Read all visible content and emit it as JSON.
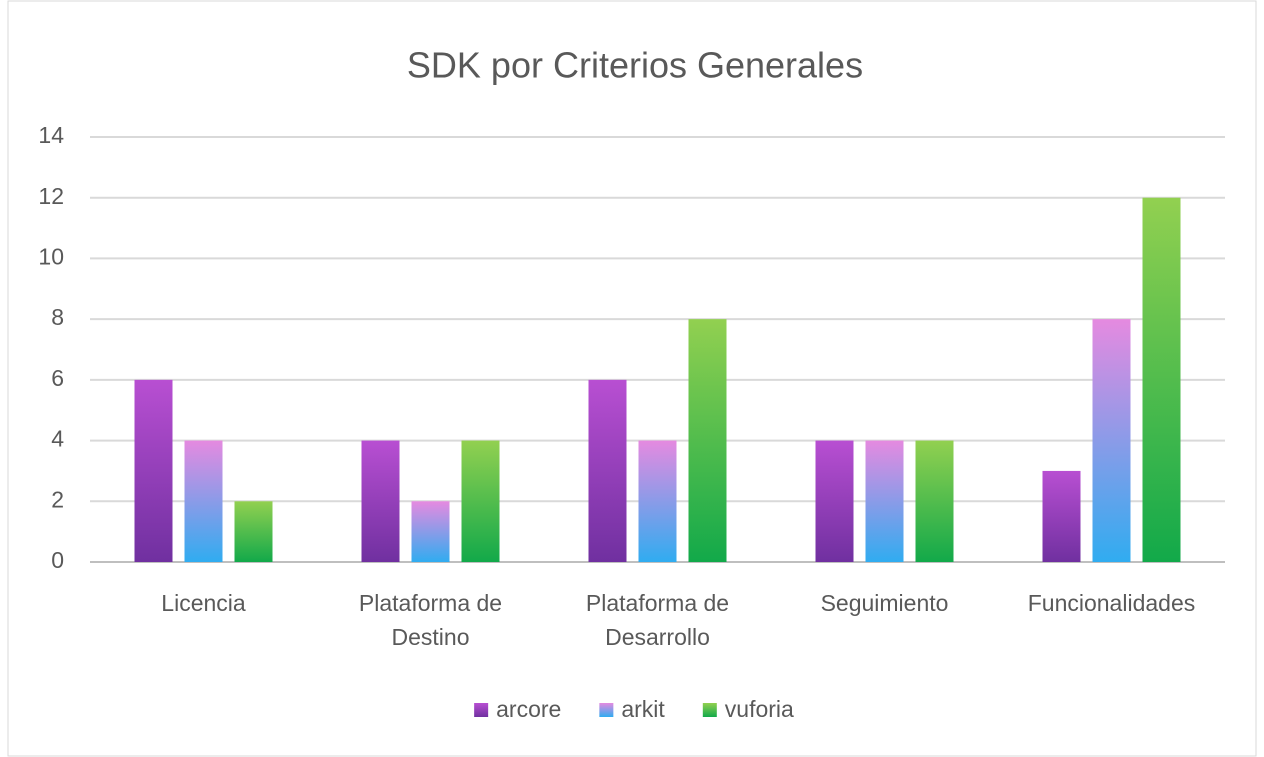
{
  "chart_data": {
    "type": "bar",
    "title": "SDK por Criterios Generales",
    "categories": [
      "Licencia",
      "Plataforma de Destino",
      "Plataforma de Desarrollo",
      "Seguimiento",
      "Funcionalidades"
    ],
    "series": [
      {
        "name": "arcore",
        "color": "#b84fd2",
        "gradient_to": "#7030a0",
        "values": [
          6,
          4,
          6,
          4,
          3
        ]
      },
      {
        "name": "arkit",
        "color": "#e58ae0",
        "gradient_to": "#30acf0",
        "values": [
          4,
          2,
          4,
          4,
          8
        ]
      },
      {
        "name": "vuforia",
        "color": "#92d050",
        "gradient_to": "#12a94a",
        "values": [
          2,
          4,
          8,
          4,
          12
        ]
      }
    ],
    "ylim": [
      0,
      14
    ],
    "yticks": [
      0,
      2,
      4,
      6,
      8,
      10,
      12,
      14
    ],
    "grid": true,
    "legend": "bottom"
  }
}
